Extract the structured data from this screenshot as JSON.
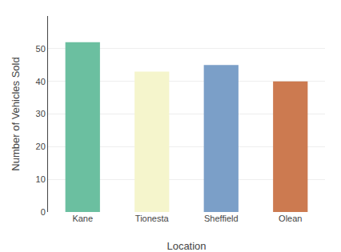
{
  "chart_data": {
    "type": "bar",
    "categories": [
      "Kane",
      "Tionesta",
      "Sheffield",
      "Olean"
    ],
    "values": [
      52,
      43,
      45,
      40
    ],
    "colors": [
      "#6BBFA0",
      "#F5F5CC",
      "#7B9FC8",
      "#CC7A50"
    ],
    "xlabel": "Location",
    "ylabel": "Number of Vehicles Sold",
    "ylim": [
      0,
      60
    ],
    "yticks": [
      0,
      10,
      20,
      30,
      40,
      50
    ],
    "grid": true
  }
}
